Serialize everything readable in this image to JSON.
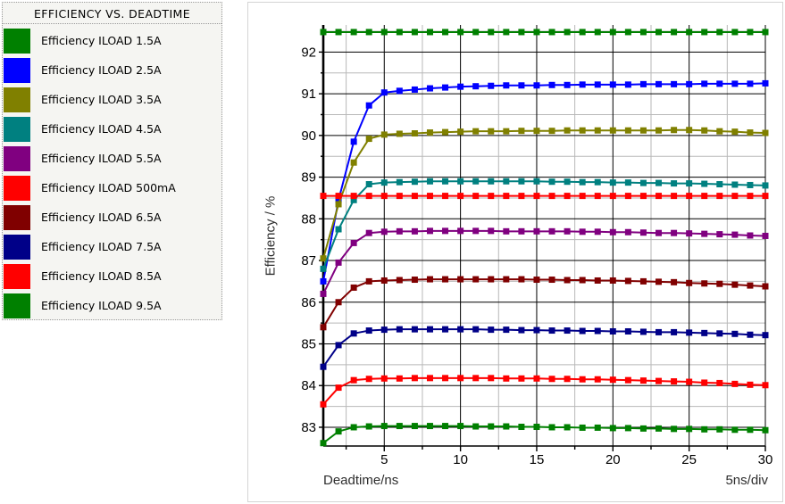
{
  "legend": {
    "title": "EFFICIENCY VS. DEADTIME",
    "items": [
      {
        "label": "Efficiency ILOAD 1.5A",
        "color": "#008000"
      },
      {
        "label": "Efficiency ILOAD 2.5A",
        "color": "#0000ff"
      },
      {
        "label": "Efficiency ILOAD 3.5A",
        "color": "#808000"
      },
      {
        "label": "Efficiency ILOAD 4.5A",
        "color": "#008080"
      },
      {
        "label": "Efficiency ILOAD 5.5A",
        "color": "#800080"
      },
      {
        "label": "Efficiency ILOAD 500mA",
        "color": "#ff0000"
      },
      {
        "label": "Efficiency ILOAD 6.5A",
        "color": "#800000"
      },
      {
        "label": "Efficiency ILOAD 7.5A",
        "color": "#000088"
      },
      {
        "label": "Efficiency ILOAD 8.5A",
        "color": "#ff0000"
      },
      {
        "label": "Efficiency ILOAD 9.5A",
        "color": "#008000"
      }
    ]
  },
  "chart_data": {
    "type": "line",
    "title": "EFFICIENCY VS. DEADTIME",
    "xlabel": "Deadtime/ns",
    "ylabel": "Efficiency / %",
    "x_note": "5ns/div",
    "xlim": [
      1,
      30
    ],
    "ylim": [
      82.55,
      92.65
    ],
    "x_major_ticks": [
      5,
      10,
      15,
      20,
      25,
      30
    ],
    "x_minor_ticks": [
      2.5,
      7.5,
      12.5,
      17.5,
      22.5,
      27.5
    ],
    "y_major_ticks": [
      83,
      84,
      85,
      86,
      87,
      88,
      89,
      90,
      91,
      92
    ],
    "y_minor_ticks": [
      83.5,
      84.5,
      85.5,
      86.5,
      87.5,
      88.5,
      89.5,
      90.5,
      91.5,
      92.5
    ],
    "grid_major_color": "#000000",
    "grid_minor_color": "#b8b8b8",
    "marker": "square",
    "legend_position": "outside-left",
    "x": [
      1,
      2,
      3,
      4,
      5,
      6,
      7,
      8,
      9,
      10,
      11,
      12,
      13,
      14,
      15,
      16,
      17,
      18,
      19,
      20,
      21,
      22,
      23,
      24,
      25,
      26,
      27,
      28,
      29,
      30
    ],
    "series": [
      {
        "name": "Efficiency ILOAD 1.5A",
        "color": "#008000",
        "values": [
          92.48,
          92.48,
          92.48,
          92.48,
          92.48,
          92.48,
          92.48,
          92.48,
          92.48,
          92.48,
          92.48,
          92.48,
          92.48,
          92.48,
          92.48,
          92.48,
          92.48,
          92.48,
          92.48,
          92.48,
          92.48,
          92.48,
          92.48,
          92.48,
          92.48,
          92.48,
          92.48,
          92.48,
          92.48,
          92.48
        ]
      },
      {
        "name": "Efficiency ILOAD 2.5A",
        "color": "#0000ff",
        "values": [
          86.5,
          88.45,
          89.85,
          90.72,
          91.03,
          91.07,
          91.1,
          91.13,
          91.15,
          91.17,
          91.18,
          91.19,
          91.2,
          91.2,
          91.2,
          91.21,
          91.21,
          91.22,
          91.22,
          91.22,
          91.22,
          91.23,
          91.23,
          91.23,
          91.23,
          91.24,
          91.24,
          91.24,
          91.24,
          91.25
        ]
      },
      {
        "name": "Efficiency ILOAD 3.5A",
        "color": "#808000",
        "values": [
          87.05,
          88.35,
          89.35,
          89.92,
          90.02,
          90.04,
          90.05,
          90.07,
          90.08,
          90.09,
          90.1,
          90.1,
          90.1,
          90.11,
          90.11,
          90.11,
          90.12,
          90.12,
          90.12,
          90.12,
          90.12,
          90.12,
          90.12,
          90.13,
          90.13,
          90.12,
          90.1,
          90.09,
          90.07,
          90.06
        ]
      },
      {
        "name": "Efficiency ILOAD 4.5A",
        "color": "#008080",
        "values": [
          86.8,
          87.75,
          88.45,
          88.83,
          88.87,
          88.88,
          88.89,
          88.9,
          88.9,
          88.9,
          88.9,
          88.9,
          88.9,
          88.9,
          88.9,
          88.89,
          88.89,
          88.88,
          88.88,
          88.87,
          88.87,
          88.86,
          88.86,
          88.85,
          88.85,
          88.84,
          88.83,
          88.82,
          88.81,
          88.8
        ]
      },
      {
        "name": "Efficiency ILOAD 5.5A",
        "color": "#800080",
        "values": [
          86.2,
          86.95,
          87.42,
          87.66,
          87.69,
          87.7,
          87.7,
          87.71,
          87.71,
          87.71,
          87.71,
          87.71,
          87.7,
          87.7,
          87.7,
          87.7,
          87.7,
          87.69,
          87.69,
          87.68,
          87.68,
          87.67,
          87.66,
          87.66,
          87.65,
          87.64,
          87.63,
          87.62,
          87.6,
          87.59
        ]
      },
      {
        "name": "Efficiency ILOAD 500mA",
        "color": "#ff0000",
        "values": [
          88.55,
          88.55,
          88.55,
          88.55,
          88.55,
          88.55,
          88.55,
          88.55,
          88.55,
          88.55,
          88.55,
          88.55,
          88.55,
          88.55,
          88.55,
          88.55,
          88.55,
          88.55,
          88.55,
          88.55,
          88.55,
          88.55,
          88.55,
          88.55,
          88.55,
          88.55,
          88.55,
          88.55,
          88.55,
          88.55
        ]
      },
      {
        "name": "Efficiency ILOAD 6.5A",
        "color": "#800000",
        "values": [
          85.4,
          86.0,
          86.35,
          86.5,
          86.52,
          86.53,
          86.54,
          86.55,
          86.55,
          86.55,
          86.55,
          86.55,
          86.55,
          86.55,
          86.54,
          86.54,
          86.53,
          86.53,
          86.52,
          86.52,
          86.51,
          86.5,
          86.49,
          86.48,
          86.46,
          86.45,
          86.44,
          86.42,
          86.4,
          86.38
        ]
      },
      {
        "name": "Efficiency ILOAD 7.5A",
        "color": "#000088",
        "values": [
          84.45,
          84.97,
          85.25,
          85.32,
          85.34,
          85.35,
          85.35,
          85.35,
          85.35,
          85.35,
          85.35,
          85.34,
          85.34,
          85.33,
          85.33,
          85.32,
          85.32,
          85.31,
          85.31,
          85.3,
          85.3,
          85.29,
          85.28,
          85.28,
          85.27,
          85.26,
          85.25,
          85.24,
          85.22,
          85.21
        ]
      },
      {
        "name": "Efficiency ILOAD 8.5A",
        "color": "#ff0000",
        "values": [
          83.55,
          83.95,
          84.13,
          84.16,
          84.17,
          84.17,
          84.18,
          84.18,
          84.18,
          84.18,
          84.18,
          84.18,
          84.17,
          84.17,
          84.17,
          84.16,
          84.16,
          84.15,
          84.15,
          84.14,
          84.13,
          84.12,
          84.11,
          84.1,
          84.09,
          84.07,
          84.06,
          84.04,
          84.02,
          84.01
        ]
      },
      {
        "name": "Efficiency ILOAD 9.5A",
        "color": "#008000",
        "values": [
          82.62,
          82.9,
          83.0,
          83.02,
          83.03,
          83.03,
          83.03,
          83.03,
          83.03,
          83.03,
          83.02,
          83.02,
          83.02,
          83.01,
          83.01,
          83.0,
          83.0,
          82.99,
          82.99,
          82.98,
          82.98,
          82.97,
          82.97,
          82.96,
          82.96,
          82.95,
          82.95,
          82.94,
          82.94,
          82.93
        ]
      }
    ]
  }
}
